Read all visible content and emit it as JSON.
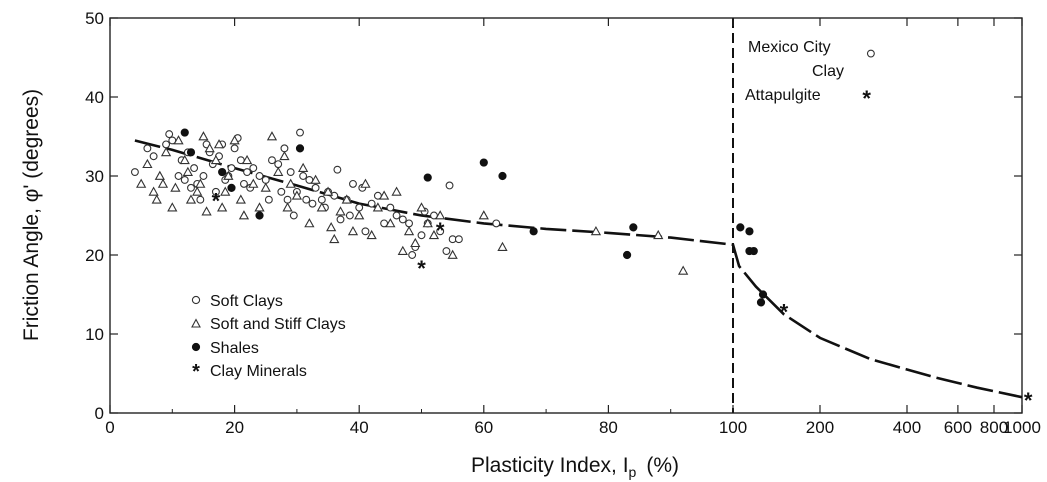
{
  "chart_data": {
    "type": "scatter",
    "xlabel": "Plasticity Index, I",
    "xlabel_subscript": "p",
    "xlabel_unit": "(%)",
    "ylabel": "Friction Angle,  φ' (degrees)",
    "ylim": [
      0,
      50
    ],
    "yticks": [
      "0",
      "10",
      "20",
      "30",
      "40",
      "50"
    ],
    "x_scale": "linear 0–100, logarithmic 100–1000",
    "xticks": [
      "0",
      "20",
      "40",
      "60",
      "80",
      "100",
      "200",
      "400",
      "600",
      "800",
      "1000"
    ],
    "divider_x": 100,
    "legend_position": "bottom-left",
    "series": [
      {
        "name": "Soft Clays",
        "marker": "circle-open",
        "points": [
          [
            4,
            30.5
          ],
          [
            6,
            33.5
          ],
          [
            7,
            32.5
          ],
          [
            9,
            34
          ],
          [
            9.5,
            35.3
          ],
          [
            10,
            34.5
          ],
          [
            11,
            30
          ],
          [
            11.5,
            32
          ],
          [
            12,
            29.5
          ],
          [
            12.5,
            33
          ],
          [
            13,
            28.5
          ],
          [
            13.5,
            31
          ],
          [
            14,
            29
          ],
          [
            14.5,
            27
          ],
          [
            15,
            30
          ],
          [
            15.5,
            34
          ],
          [
            16,
            33
          ],
          [
            16.5,
            31.5
          ],
          [
            17,
            28
          ],
          [
            17.5,
            32.5
          ],
          [
            18,
            34
          ],
          [
            18.5,
            29.5
          ],
          [
            19,
            30
          ],
          [
            19.5,
            31
          ],
          [
            20,
            33.5
          ],
          [
            20.5,
            34.8
          ],
          [
            21,
            32
          ],
          [
            21.5,
            29
          ],
          [
            22,
            30.5
          ],
          [
            22.5,
            28.5
          ],
          [
            23,
            31
          ],
          [
            24,
            30
          ],
          [
            25,
            29.5
          ],
          [
            25.5,
            27
          ],
          [
            26,
            32
          ],
          [
            27,
            31.5
          ],
          [
            27.5,
            28
          ],
          [
            28,
            33.5
          ],
          [
            28.5,
            27
          ],
          [
            29,
            30.5
          ],
          [
            29.5,
            25
          ],
          [
            30,
            28
          ],
          [
            30.5,
            35.5
          ],
          [
            31,
            30
          ],
          [
            31.5,
            27
          ],
          [
            32,
            29.5
          ],
          [
            32.5,
            26.5
          ],
          [
            33,
            28.5
          ],
          [
            34,
            27
          ],
          [
            34.5,
            26
          ],
          [
            35,
            28
          ],
          [
            36,
            27.5
          ],
          [
            36.5,
            30.8
          ],
          [
            37,
            24.5
          ],
          [
            38,
            27
          ],
          [
            38.5,
            25
          ],
          [
            39,
            29
          ],
          [
            40,
            26
          ],
          [
            40.5,
            28.5
          ],
          [
            41,
            23
          ],
          [
            42,
            26.5
          ],
          [
            43,
            27.5
          ],
          [
            44,
            24
          ],
          [
            45,
            26
          ],
          [
            46,
            25
          ],
          [
            47,
            24.5
          ],
          [
            48,
            24
          ],
          [
            48.5,
            20
          ],
          [
            49,
            21
          ],
          [
            50,
            22.5
          ],
          [
            50.5,
            25.5
          ],
          [
            51,
            24
          ],
          [
            52,
            25
          ],
          [
            53,
            23
          ],
          [
            54,
            20.5
          ],
          [
            54.5,
            28.8
          ],
          [
            55,
            22
          ],
          [
            56,
            22
          ],
          [
            62,
            24
          ]
        ]
      },
      {
        "name": "Soft and Stiff Clays",
        "marker": "triangle-open",
        "points": [
          [
            5,
            29
          ],
          [
            6,
            31.5
          ],
          [
            7,
            28
          ],
          [
            7.5,
            27
          ],
          [
            8,
            30
          ],
          [
            8.5,
            29
          ],
          [
            9,
            33
          ],
          [
            10,
            26
          ],
          [
            10.5,
            28.5
          ],
          [
            11,
            34.5
          ],
          [
            12,
            32
          ],
          [
            12.5,
            30.5
          ],
          [
            13,
            27
          ],
          [
            14,
            28
          ],
          [
            14.5,
            29
          ],
          [
            15,
            35
          ],
          [
            15.5,
            25.5
          ],
          [
            16,
            33.5
          ],
          [
            17,
            32
          ],
          [
            17.5,
            34
          ],
          [
            18,
            26
          ],
          [
            18.5,
            28
          ],
          [
            19,
            30
          ],
          [
            20,
            34.5
          ],
          [
            21,
            27
          ],
          [
            21.5,
            25
          ],
          [
            22,
            32
          ],
          [
            23,
            29
          ],
          [
            24,
            26
          ],
          [
            25,
            28.5
          ],
          [
            26,
            35
          ],
          [
            27,
            30.5
          ],
          [
            28,
            32.5
          ],
          [
            28.5,
            26
          ],
          [
            29,
            29
          ],
          [
            30,
            27.5
          ],
          [
            31,
            31
          ],
          [
            32,
            24
          ],
          [
            33,
            29.5
          ],
          [
            34,
            26
          ],
          [
            35,
            28
          ],
          [
            35.5,
            23.5
          ],
          [
            36,
            22
          ],
          [
            37,
            25.5
          ],
          [
            38,
            27
          ],
          [
            39,
            23
          ],
          [
            40,
            25
          ],
          [
            41,
            29
          ],
          [
            42,
            22.5
          ],
          [
            43,
            26
          ],
          [
            44,
            27.5
          ],
          [
            45,
            24
          ],
          [
            46,
            28
          ],
          [
            47,
            20.5
          ],
          [
            48,
            23
          ],
          [
            49,
            21.5
          ],
          [
            50,
            26
          ],
          [
            51,
            24
          ],
          [
            52,
            22.5
          ],
          [
            53,
            25
          ],
          [
            55,
            20
          ],
          [
            60,
            25
          ],
          [
            63,
            21
          ],
          [
            78,
            23
          ],
          [
            88,
            22.5
          ],
          [
            92,
            18
          ]
        ]
      },
      {
        "name": "Shales",
        "marker": "circle-solid",
        "points": [
          [
            12,
            35.5
          ],
          [
            13,
            33
          ],
          [
            18,
            30.5
          ],
          [
            19.5,
            28.5
          ],
          [
            24,
            25
          ],
          [
            30.5,
            33.5
          ],
          [
            51,
            29.8
          ],
          [
            60,
            31.7
          ],
          [
            63,
            30
          ],
          [
            68,
            23
          ],
          [
            83,
            20
          ],
          [
            84,
            23.5
          ],
          [
            106,
            23.5
          ],
          [
            114,
            23
          ],
          [
            114,
            20.5
          ],
          [
            118,
            20.5
          ],
          [
            125,
            14
          ],
          [
            127,
            15
          ]
        ]
      },
      {
        "name": "Clay Minerals",
        "marker": "star",
        "points": [
          [
            17,
            27
          ],
          [
            50,
            18.5
          ],
          [
            53,
            23.3
          ],
          [
            150,
            13
          ],
          [
            1050,
            1.8
          ]
        ]
      },
      {
        "name": "Mexico City Clay",
        "marker": "circle-open",
        "points": [
          [
            300,
            45.5
          ]
        ]
      },
      {
        "name": "Attapulgite",
        "marker": "star",
        "points": [
          [
            290,
            40
          ]
        ]
      }
    ],
    "trend_line": [
      [
        4,
        34.5
      ],
      [
        10,
        33.3
      ],
      [
        20,
        31
      ],
      [
        30,
        28.8
      ],
      [
        40,
        26.5
      ],
      [
        50,
        25
      ],
      [
        60,
        24
      ],
      [
        70,
        23.3
      ],
      [
        80,
        22.8
      ],
      [
        90,
        22.2
      ],
      [
        100,
        21.3
      ],
      [
        105,
        18.6
      ],
      [
        120,
        16
      ],
      [
        150,
        12.5
      ],
      [
        200,
        9.5
      ],
      [
        300,
        6.8
      ],
      [
        500,
        4.5
      ],
      [
        700,
        3.2
      ],
      [
        1000,
        2
      ]
    ],
    "legend": [
      "Soft Clays",
      "Soft and Stiff Clays",
      "Shales",
      "Clay Minerals"
    ],
    "annotations": {
      "mexico_line1": "Mexico City",
      "mexico_line2": "Clay",
      "attapulgite": "Attapulgite"
    }
  }
}
